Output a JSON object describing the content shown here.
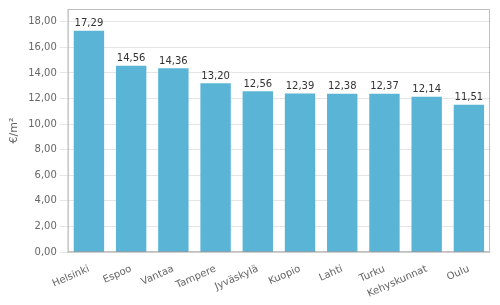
{
  "chart_data": {
    "type": "bar",
    "categories": [
      "Helsinki",
      "Espoo",
      "Vantaa",
      "Tampere",
      "Jyväskylä",
      "Kuopio",
      "Lahti",
      "Turku",
      "Kehyskunnat",
      "Oulu"
    ],
    "values": [
      17.29,
      14.56,
      14.36,
      13.2,
      12.56,
      12.39,
      12.38,
      12.37,
      12.14,
      11.51
    ],
    "value_labels": [
      "17,29",
      "14,56",
      "14,36",
      "13,20",
      "12,56",
      "12,39",
      "12,38",
      "12,37",
      "12,14",
      "11,51"
    ],
    "data_labels": true,
    "color": "#5ab4d6",
    "ylabel": "€/m²",
    "ylim": [
      0,
      19.0
    ],
    "yticks": [
      {
        "value": 0.0,
        "label": "0,00"
      },
      {
        "value": 2.0,
        "label": "2,00"
      },
      {
        "value": 4.0,
        "label": "4,00"
      },
      {
        "value": 6.0,
        "label": "6,00"
      },
      {
        "value": 8.0,
        "label": "8,00"
      },
      {
        "value": 10.0,
        "label": "10,00"
      },
      {
        "value": 12.0,
        "label": "12,00"
      },
      {
        "value": 14.0,
        "label": "14,00"
      },
      {
        "value": 16.0,
        "label": "16,00"
      },
      {
        "value": 18.0,
        "label": "18,00"
      }
    ],
    "grid": true
  }
}
